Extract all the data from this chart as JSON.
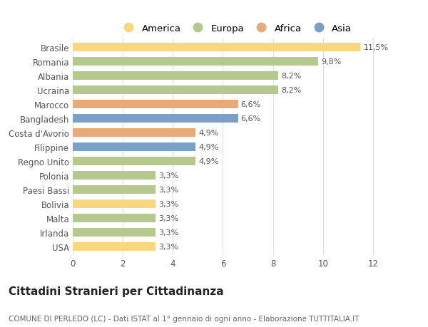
{
  "categories": [
    "Brasile",
    "Romania",
    "Albania",
    "Ucraina",
    "Marocco",
    "Bangladesh",
    "Costa d'Avorio",
    "Filippine",
    "Regno Unito",
    "Polonia",
    "Paesi Bassi",
    "Bolivia",
    "Malta",
    "Irlanda",
    "USA"
  ],
  "values": [
    11.5,
    9.8,
    8.2,
    8.2,
    6.6,
    6.6,
    4.9,
    4.9,
    4.9,
    3.3,
    3.3,
    3.3,
    3.3,
    3.3,
    3.3
  ],
  "labels": [
    "11,5%",
    "9,8%",
    "8,2%",
    "8,2%",
    "6,6%",
    "6,6%",
    "4,9%",
    "4,9%",
    "4,9%",
    "3,3%",
    "3,3%",
    "3,3%",
    "3,3%",
    "3,3%",
    "3,3%"
  ],
  "continents": [
    "America",
    "Europa",
    "Europa",
    "Europa",
    "Africa",
    "Asia",
    "Africa",
    "Asia",
    "Europa",
    "Europa",
    "Europa",
    "America",
    "Europa",
    "Europa",
    "America"
  ],
  "colors": {
    "America": "#F9D77E",
    "Europa": "#B5C98E",
    "Africa": "#E8AA7A",
    "Asia": "#7B9FC7"
  },
  "legend_order": [
    "America",
    "Europa",
    "Africa",
    "Asia"
  ],
  "xlim": [
    0,
    13
  ],
  "xticks": [
    0,
    2,
    4,
    6,
    8,
    10,
    12
  ],
  "title": "Cittadini Stranieri per Cittadinanza",
  "subtitle": "COMUNE DI PERLEDO (LC) - Dati ISTAT al 1° gennaio di ogni anno - Elaborazione TUTTITALIA.IT",
  "bg_color": "#FFFFFF",
  "grid_color": "#E0E0E0",
  "bar_height": 0.6,
  "label_fontsize": 8,
  "tick_fontsize": 8.5,
  "title_fontsize": 11,
  "subtitle_fontsize": 7.5
}
